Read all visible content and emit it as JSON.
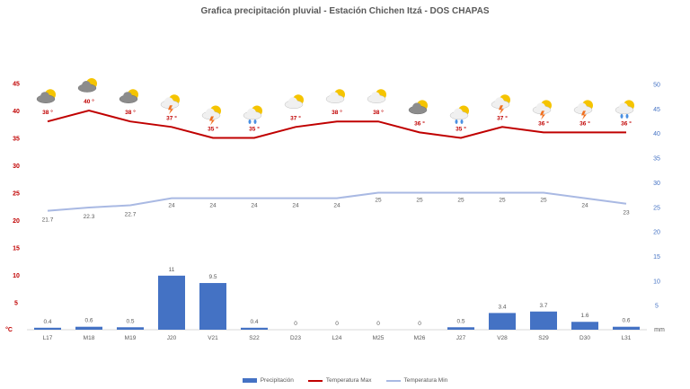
{
  "title": "Grafica precipitación pluvial - Estación Chichen Itzá - DOS CHAPAS",
  "colors": {
    "precip": "#4472c4",
    "tmax": "#c00000",
    "tmin": "#a9b9e3",
    "left_axis": "#c00000",
    "right_axis": "#4472c4"
  },
  "axes": {
    "left_unit": "°C",
    "right_unit": "mm",
    "left_ticks": [
      5,
      10,
      15,
      20,
      25,
      30,
      35,
      40,
      45
    ],
    "right_ticks": [
      5,
      10,
      15,
      20,
      25,
      30,
      35,
      40,
      45,
      50
    ]
  },
  "legend": {
    "precip": "Precipitación",
    "tmax": "Temperatura Max",
    "tmin": "Temperatura Min"
  },
  "chart_data": {
    "type": "bar",
    "title": "Grafica precipitación pluvial - Estación Chichen Itzá - DOS CHAPAS",
    "categories": [
      "L17",
      "M18",
      "M19",
      "J20",
      "V21",
      "S22",
      "D23",
      "L24",
      "M25",
      "M26",
      "J27",
      "V28",
      "S29",
      "D30",
      "L31"
    ],
    "series": [
      {
        "name": "Precipitación",
        "type": "bar",
        "axis": "right",
        "unit": "mm",
        "values": [
          0.4,
          0.6,
          0.5,
          11,
          9.5,
          0.4,
          0,
          0,
          0,
          0,
          0.5,
          3.4,
          3.7,
          1.6,
          0.6
        ]
      },
      {
        "name": "Temperatura Max",
        "type": "line",
        "axis": "left",
        "unit": "°C",
        "values": [
          38,
          40,
          38,
          37,
          35,
          35,
          37,
          38,
          38,
          36,
          35,
          37,
          36,
          36,
          36
        ]
      },
      {
        "name": "Temperatura Min",
        "type": "line",
        "axis": "left",
        "unit": "°C",
        "values": [
          21.7,
          22.3,
          22.7,
          24,
          24,
          24,
          24,
          24,
          25,
          25,
          25,
          25,
          25,
          24,
          23
        ]
      }
    ],
    "weather_icons": [
      "cloudy-sun",
      "cloudy-sun",
      "cloudy-sun",
      "storm-sun",
      "storm-sun",
      "rain-sun",
      "partly-cloudy",
      "partly-cloudy",
      "partly-cloudy",
      "cloudy-sun",
      "rain-sun",
      "storm-sun",
      "storm-sun",
      "storm-sun",
      "rain-sun"
    ],
    "ylabel_left": "°C",
    "ylabel_right": "mm",
    "ylim_left": [
      0,
      45
    ],
    "ylim_right": [
      0,
      50
    ],
    "grid": false,
    "legend_position": "bottom"
  }
}
